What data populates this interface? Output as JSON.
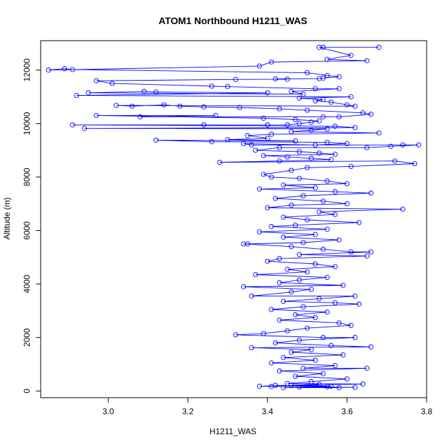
{
  "colors": {
    "series": "#0000ff",
    "axis": "#000000",
    "background": "#ffffff"
  },
  "chart_data": {
    "type": "line",
    "markers": "open-circle",
    "title": "ATOM1 Northbound H1211_WAS",
    "xlabel": "H1211_WAS",
    "ylabel": "Altitude (m)",
    "xlim": [
      2.83,
      3.8
    ],
    "ylim": [
      -250,
      13100
    ],
    "x_ticks": [
      "3.0",
      "3.2",
      "3.4",
      "3.6",
      "3.8"
    ],
    "y_ticks": [
      "0",
      "2000",
      "4000",
      "6000",
      "8000",
      "10000",
      "12000"
    ],
    "grid": false,
    "legend": "none",
    "points": [
      [
        3.68,
        12850
      ],
      [
        3.54,
        12850
      ],
      [
        3.53,
        12850
      ],
      [
        3.61,
        12550
      ],
      [
        3.55,
        12400
      ],
      [
        3.65,
        12350
      ],
      [
        3.41,
        12300
      ],
      [
        3.38,
        12150
      ],
      [
        2.85,
        12000
      ],
      [
        2.89,
        12050
      ],
      [
        2.91,
        12020
      ],
      [
        3.5,
        11900
      ],
      [
        3.55,
        11800
      ],
      [
        3.58,
        11750
      ],
      [
        3.54,
        11700
      ],
      [
        3.53,
        11680
      ],
      [
        3.42,
        11670
      ],
      [
        3.45,
        11660
      ],
      [
        3.32,
        11650
      ],
      [
        2.97,
        11600
      ],
      [
        3.01,
        11500
      ],
      [
        3.26,
        11400
      ],
      [
        3.3,
        11380
      ],
      [
        3.52,
        11300
      ],
      [
        3.58,
        11300
      ],
      [
        3.46,
        11200
      ],
      [
        3.49,
        11100
      ],
      [
        2.95,
        11150
      ],
      [
        3.09,
        11200
      ],
      [
        3.12,
        11180
      ],
      [
        3.4,
        11150
      ],
      [
        2.92,
        11050
      ],
      [
        3.61,
        11000
      ],
      [
        3.48,
        10950
      ],
      [
        3.54,
        10900
      ],
      [
        3.52,
        10850
      ],
      [
        3.56,
        10800
      ],
      [
        3.6,
        10700
      ],
      [
        3.62,
        10650
      ],
      [
        3.02,
        10680
      ],
      [
        3.06,
        10650
      ],
      [
        3.14,
        10700
      ],
      [
        3.18,
        10650
      ],
      [
        3.24,
        10620
      ],
      [
        3.33,
        10600
      ],
      [
        3.43,
        10550
      ],
      [
        3.5,
        10500
      ],
      [
        3.64,
        10400
      ],
      [
        3.66,
        10350
      ],
      [
        3.58,
        10250
      ],
      [
        3.54,
        10250
      ],
      [
        3.08,
        10250
      ],
      [
        3.27,
        10300
      ],
      [
        2.97,
        10300
      ],
      [
        3.39,
        10200
      ],
      [
        3.47,
        10150
      ],
      [
        3.53,
        10100
      ],
      [
        3.51,
        10050
      ],
      [
        3.48,
        10000
      ],
      [
        3.45,
        9950
      ],
      [
        3.4,
        9950
      ],
      [
        3.24,
        9950
      ],
      [
        2.91,
        9950
      ],
      [
        3.57,
        9900
      ],
      [
        3.62,
        9850
      ],
      [
        2.94,
        9820
      ],
      [
        3.55,
        9800
      ],
      [
        3.51,
        9750
      ],
      [
        3.46,
        9700
      ],
      [
        3.68,
        9650
      ],
      [
        3.41,
        9600
      ],
      [
        3.35,
        9550
      ],
      [
        3.4,
        9450
      ],
      [
        3.3,
        9400
      ],
      [
        3.47,
        9350
      ],
      [
        3.12,
        9380
      ],
      [
        3.26,
        9320
      ],
      [
        3.55,
        9300
      ],
      [
        3.6,
        9250
      ],
      [
        3.52,
        9200
      ],
      [
        3.34,
        9250
      ],
      [
        3.36,
        9200
      ],
      [
        3.74,
        9200
      ],
      [
        3.78,
        9200
      ],
      [
        3.71,
        9150
      ],
      [
        3.65,
        9100
      ],
      [
        3.43,
        9100
      ],
      [
        3.37,
        9000
      ],
      [
        3.48,
        8950
      ],
      [
        3.53,
        8900
      ],
      [
        3.57,
        8850
      ],
      [
        3.39,
        8800
      ],
      [
        3.45,
        8750
      ],
      [
        3.51,
        8700
      ],
      [
        3.56,
        8650
      ],
      [
        3.43,
        8600
      ],
      [
        3.28,
        8550
      ],
      [
        3.72,
        8600
      ],
      [
        3.77,
        8500
      ],
      [
        3.61,
        8400
      ],
      [
        3.5,
        8350
      ],
      [
        3.46,
        8250
      ],
      [
        3.39,
        8100
      ],
      [
        3.41,
        8000
      ],
      [
        3.48,
        7950
      ],
      [
        3.55,
        7850
      ],
      [
        3.6,
        7750
      ],
      [
        3.44,
        7700
      ],
      [
        3.52,
        7600
      ],
      [
        3.38,
        7550
      ],
      [
        3.57,
        7450
      ],
      [
        3.66,
        7400
      ],
      [
        3.49,
        7300
      ],
      [
        3.42,
        7200
      ],
      [
        3.54,
        7100
      ],
      [
        3.6,
        7000
      ],
      [
        3.46,
        6950
      ],
      [
        3.4,
        6850
      ],
      [
        3.74,
        6800
      ],
      [
        3.53,
        6700
      ],
      [
        3.57,
        6600
      ],
      [
        3.44,
        6500
      ],
      [
        3.5,
        6400
      ],
      [
        3.63,
        6300
      ],
      [
        3.47,
        6200
      ],
      [
        3.41,
        6150
      ],
      [
        3.55,
        6050
      ],
      [
        3.38,
        5950
      ],
      [
        3.52,
        5850
      ],
      [
        3.44,
        5750
      ],
      [
        3.58,
        5650
      ],
      [
        3.49,
        5550
      ],
      [
        3.35,
        5500
      ],
      [
        3.34,
        5500
      ],
      [
        3.46,
        5400
      ],
      [
        3.54,
        5300
      ],
      [
        3.61,
        5200
      ],
      [
        3.66,
        5200
      ],
      [
        3.48,
        5100
      ],
      [
        3.65,
        5050
      ],
      [
        3.43,
        4950
      ],
      [
        3.4,
        4850
      ],
      [
        3.52,
        4750
      ],
      [
        3.57,
        4650
      ],
      [
        3.45,
        4550
      ],
      [
        3.5,
        4450
      ],
      [
        3.37,
        4350
      ],
      [
        3.55,
        4250
      ],
      [
        3.48,
        4150
      ],
      [
        3.43,
        4050
      ],
      [
        3.59,
        3950
      ],
      [
        3.34,
        3900
      ],
      [
        3.51,
        3800
      ],
      [
        3.46,
        3700
      ],
      [
        3.36,
        3550
      ],
      [
        3.62,
        3550
      ],
      [
        3.53,
        3450
      ],
      [
        3.44,
        3350
      ],
      [
        3.57,
        3300
      ],
      [
        3.63,
        3250
      ],
      [
        3.49,
        3150
      ],
      [
        3.41,
        3050
      ],
      [
        3.55,
        2950
      ],
      [
        3.47,
        2850
      ],
      [
        3.52,
        2750
      ],
      [
        3.43,
        2650
      ],
      [
        3.58,
        2550
      ],
      [
        3.61,
        2450
      ],
      [
        3.5,
        2350
      ],
      [
        3.45,
        2250
      ],
      [
        3.39,
        2150
      ],
      [
        3.32,
        2100
      ],
      [
        3.54,
        2000
      ],
      [
        3.62,
        2000
      ],
      [
        3.48,
        1900
      ],
      [
        3.42,
        1800
      ],
      [
        3.56,
        1700
      ],
      [
        3.66,
        1650
      ],
      [
        3.36,
        1620
      ],
      [
        3.51,
        1550
      ],
      [
        3.46,
        1450
      ],
      [
        3.59,
        1350
      ],
      [
        3.44,
        1250
      ],
      [
        3.52,
        1150
      ],
      [
        3.41,
        1050
      ],
      [
        3.57,
        950
      ],
      [
        3.49,
        850
      ],
      [
        3.65,
        850
      ],
      [
        3.43,
        750
      ],
      [
        3.54,
        650
      ],
      [
        3.47,
        550
      ],
      [
        3.6,
        450
      ],
      [
        3.51,
        350
      ],
      [
        3.45,
        280
      ],
      [
        3.64,
        260
      ],
      [
        3.38,
        180
      ],
      [
        3.41,
        170
      ],
      [
        3.55,
        160
      ],
      [
        3.48,
        150
      ],
      [
        3.62,
        140
      ],
      [
        3.44,
        130
      ],
      [
        3.58,
        120
      ],
      [
        3.5,
        200
      ],
      [
        3.53,
        250
      ],
      [
        3.46,
        220
      ],
      [
        3.56,
        180
      ],
      [
        3.42,
        210
      ]
    ]
  }
}
